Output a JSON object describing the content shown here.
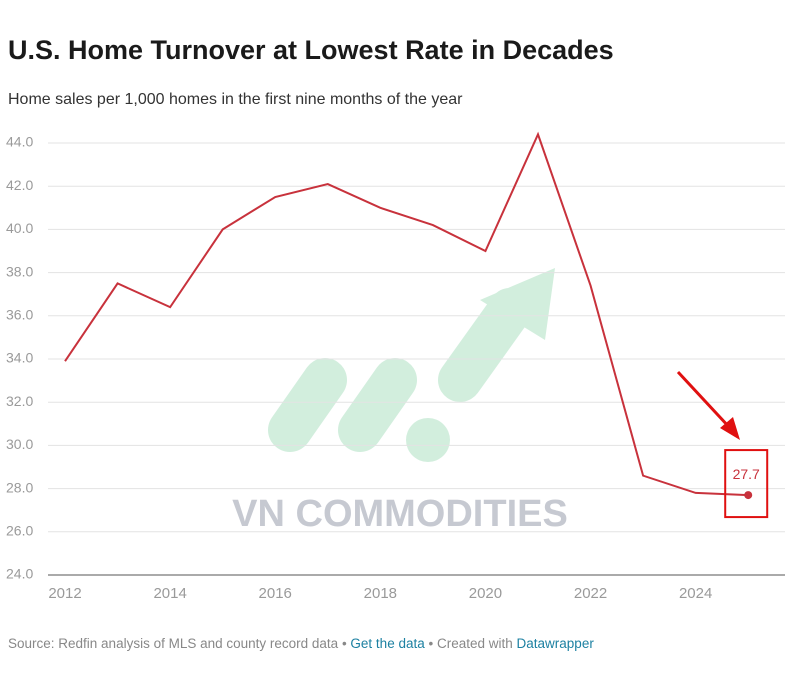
{
  "chart_data": {
    "type": "line",
    "title": "U.S. Home Turnover at Lowest Rate in Decades",
    "subtitle": "Home sales per 1,000 homes in the first nine months of the year",
    "x": [
      2012,
      2013,
      2014,
      2015,
      2016,
      2017,
      2018,
      2019,
      2020,
      2021,
      2022,
      2023,
      2024,
      2025
    ],
    "series": [
      {
        "name": "Home sales per 1,000 homes",
        "color": "#c8323c",
        "values": [
          33.9,
          37.5,
          36.4,
          40.0,
          41.5,
          42.1,
          41.0,
          40.2,
          39.0,
          44.4,
          37.4,
          28.6,
          27.8,
          27.7
        ],
        "value_labels": [
          null,
          null,
          null,
          null,
          null,
          null,
          null,
          null,
          null,
          null,
          null,
          null,
          null,
          "27.7"
        ]
      }
    ],
    "xlim": [
      2011.6,
      2025.7
    ],
    "xticks": [
      2012,
      2014,
      2016,
      2018,
      2020,
      2022,
      2024
    ],
    "ylim": [
      24,
      44
    ],
    "yticks": [
      {
        "value": 24,
        "label": "24.0"
      },
      {
        "value": 26,
        "label": "26.0"
      },
      {
        "value": 28,
        "label": "28.0"
      },
      {
        "value": 30,
        "label": "30.0"
      },
      {
        "value": 32,
        "label": "32.0"
      },
      {
        "value": 34,
        "label": "34.0"
      },
      {
        "value": 36,
        "label": "36.0"
      },
      {
        "value": 38,
        "label": "38.0"
      },
      {
        "value": 40,
        "label": "40.0"
      },
      {
        "value": 42,
        "label": "42.0"
      },
      {
        "value": 44,
        "label": "44.0"
      }
    ],
    "grid": true,
    "watermark": "VN COMMODITIES",
    "footer": {
      "source": "Source: Redfin analysis of MLS and county record data",
      "get_data": "Get the data",
      "created_with": "Created with",
      "datawrapper": "Datawrapper"
    }
  }
}
